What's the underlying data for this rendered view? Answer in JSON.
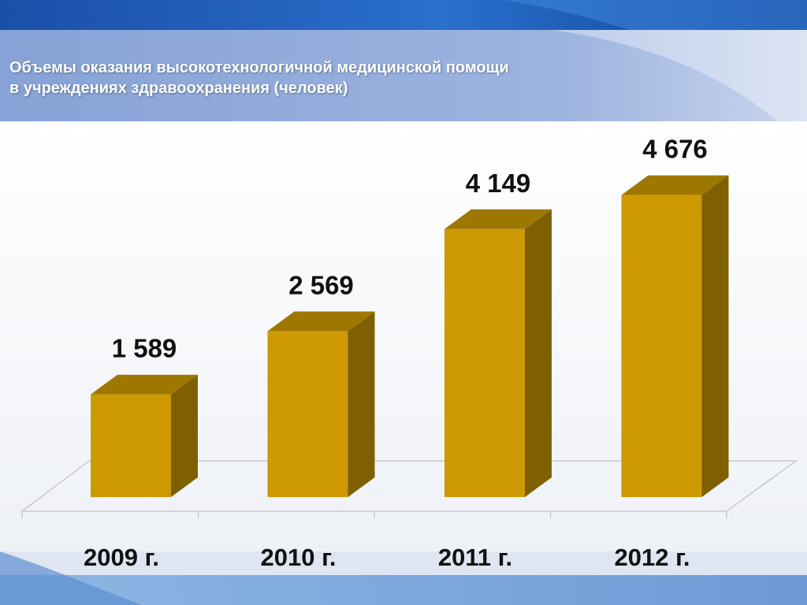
{
  "slide": {
    "title_line1": "Объемы оказания высокотехнологичной медицинской помощи",
    "title_line2": "в учреждениях здравоохранения (человек)"
  },
  "colors": {
    "bar_front": "#CC9900",
    "bar_top": "#9E7700",
    "bar_side": "#7F6000",
    "header_band": "#8FA9DA",
    "background_accent": "#1F5FB8"
  },
  "chart_data": {
    "type": "bar",
    "style": "3d-columns",
    "title": "Объемы оказания высокотехнологичной медицинской помощи в учреждениях здравоохранения (человек)",
    "categories": [
      "2009 г.",
      "2010 г.",
      "2011 г.",
      "2012 г."
    ],
    "values": [
      1589,
      2569,
      4149,
      4676
    ],
    "value_labels": [
      "1 589",
      "2 569",
      "4 149",
      "4 676"
    ],
    "ylim": [
      0,
      5500
    ],
    "y_axis_visible": false,
    "grid": false,
    "legend": "none"
  }
}
